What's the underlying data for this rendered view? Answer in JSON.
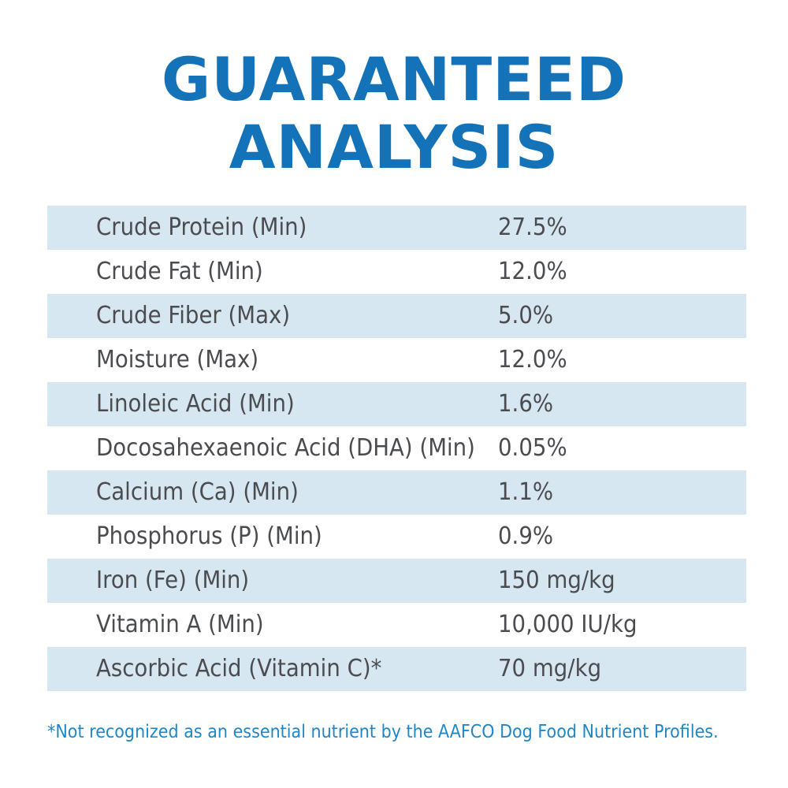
{
  "title": {
    "line1": "GUARANTEED",
    "line2": "ANALYSIS"
  },
  "colors": {
    "title": "#1472b8",
    "row_shade": "#d6e7f2",
    "text": "#4a4c50",
    "footnote": "#1f87c7"
  },
  "rows": [
    {
      "name": "Crude Protein (Min)",
      "value": "27.5%"
    },
    {
      "name": "Crude Fat (Min)",
      "value": "12.0%"
    },
    {
      "name": "Crude Fiber (Max)",
      "value": "5.0%"
    },
    {
      "name": "Moisture (Max)",
      "value": "12.0%"
    },
    {
      "name": "Linoleic Acid (Min)",
      "value": "1.6%"
    },
    {
      "name": "Docosahexaenoic Acid (DHA) (Min)",
      "value": "0.05%"
    },
    {
      "name": "Calcium (Ca) (Min)",
      "value": "1.1%"
    },
    {
      "name": "Phosphorus (P) (Min)",
      "value": "0.9%"
    },
    {
      "name": "Iron (Fe) (Min)",
      "value": "150 mg/kg"
    },
    {
      "name": "Vitamin A (Min)",
      "value": "10,000 IU/kg"
    },
    {
      "name": "Ascorbic Acid (Vitamin C)*",
      "value": "70 mg/kg"
    }
  ],
  "footnote": "*Not recognized as an essential nutrient by the AAFCO Dog Food Nutrient Profiles."
}
